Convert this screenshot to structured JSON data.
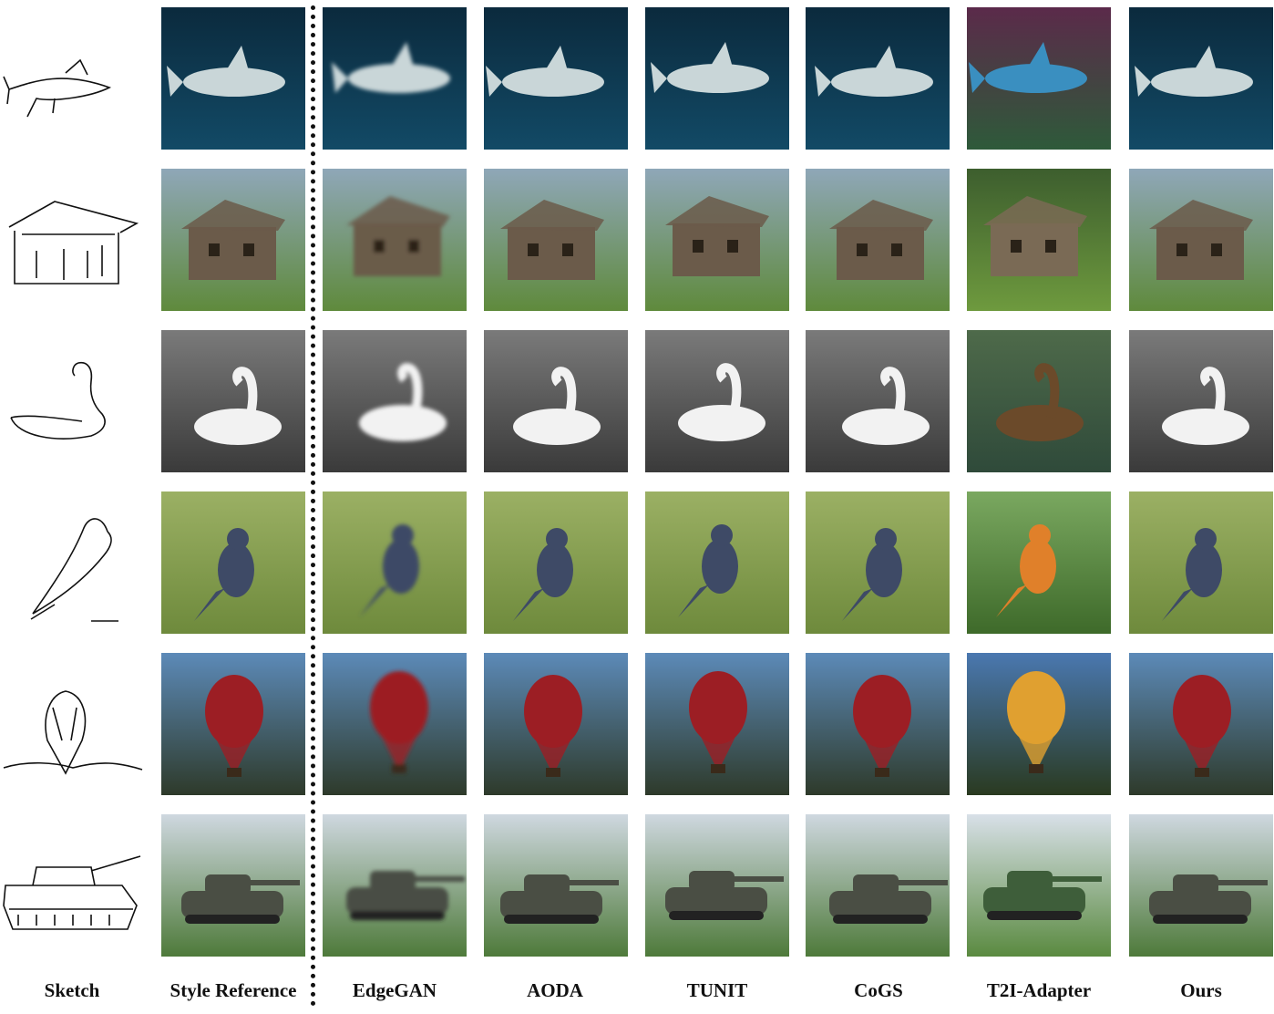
{
  "figure": {
    "columns": [
      {
        "key": "sketch",
        "label": "Sketch"
      },
      {
        "key": "style",
        "label": "Style Reference"
      },
      {
        "key": "edgegan",
        "label": "EdgeGAN"
      },
      {
        "key": "aoda",
        "label": "AODA"
      },
      {
        "key": "tunit",
        "label": "TUNIT"
      },
      {
        "key": "cogs",
        "label": "CoGS"
      },
      {
        "key": "t2i",
        "label": "T2I-Adapter"
      },
      {
        "key": "ours",
        "label": "Ours"
      }
    ],
    "rows": [
      {
        "subject": "shark",
        "bg": [
          "#0b2a3d",
          "#124a66"
        ],
        "fg": "#c9d6d8",
        "t2i_bg": [
          "#5b2a4a",
          "#2e5a3a"
        ],
        "t2i_fg": "#3a8fc0"
      },
      {
        "subject": "cabin",
        "bg": [
          "#8fa7b8",
          "#5f8a3c"
        ],
        "fg": "#6b5b4a",
        "t2i_bg": [
          "#3d5e2e",
          "#6e9a3e"
        ],
        "t2i_fg": "#7a6a55"
      },
      {
        "subject": "swan",
        "bg": [
          "#7a7a7a",
          "#3a3a3a"
        ],
        "fg": "#f2f2f2",
        "t2i_bg": [
          "#4e6a4a",
          "#2f4a3a"
        ],
        "t2i_fg": "#6b4a2a"
      },
      {
        "subject": "bird",
        "bg": [
          "#9bb064",
          "#6e8a3c"
        ],
        "fg": "#3e4a66",
        "t2i_bg": [
          "#7aa860",
          "#3e6a2a"
        ],
        "t2i_fg": "#e0802a"
      },
      {
        "subject": "balloon",
        "bg": [
          "#5c8ab8",
          "#2e3a2a"
        ],
        "fg": "#9c1e24",
        "t2i_bg": [
          "#4a78b0",
          "#2a3a20"
        ],
        "t2i_fg": "#e0a030"
      },
      {
        "subject": "tank",
        "bg": [
          "#cfd8e0",
          "#4e7a3a"
        ],
        "fg": "#4a4e44",
        "t2i_bg": [
          "#d8e0e8",
          "#5a8a40"
        ],
        "t2i_fg": "#3e5e3a"
      }
    ]
  }
}
